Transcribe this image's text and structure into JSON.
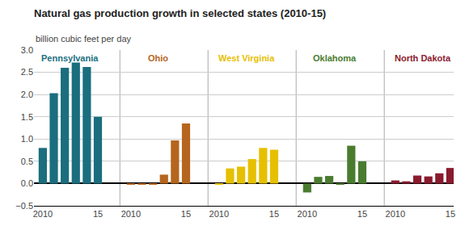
{
  "chart_data": {
    "type": "bar",
    "title": "Natural gas production growth in selected states (2010-15)",
    "subtitle": "billion cubic feet per day",
    "categories": [
      "2010",
      null,
      null,
      null,
      null,
      "15"
    ],
    "series": [
      {
        "name": "Pennsylvania",
        "color": "#1a6e7e",
        "values": [
          0.8,
          2.03,
          2.6,
          2.72,
          2.62,
          1.5
        ]
      },
      {
        "name": "Ohio",
        "color": "#b5651d",
        "values": [
          -0.02,
          -0.02,
          -0.02,
          0.2,
          0.97,
          1.35
        ]
      },
      {
        "name": "West Virginia",
        "color": "#e6c000",
        "values": [
          -0.03,
          0.34,
          0.38,
          0.55,
          0.8,
          0.76
        ]
      },
      {
        "name": "Oklahoma",
        "color": "#4a7c2f",
        "values": [
          -0.2,
          0.15,
          0.17,
          -0.03,
          0.85,
          0.5
        ]
      },
      {
        "name": "North Dakota",
        "color": "#8b1a2e",
        "values": [
          0.07,
          0.05,
          0.18,
          0.16,
          0.23,
          0.35
        ]
      }
    ],
    "ylim": [
      -0.5,
      3.0
    ],
    "yticks": [
      {
        "value": -0.5,
        "label": "−0.5"
      },
      {
        "value": 0.0,
        "label": "0.0"
      },
      0.5,
      {
        "value": 1.0,
        "label": "1.0"
      },
      1.5,
      {
        "value": 2.0,
        "label": "2.0"
      },
      2.5,
      {
        "value": 3.0,
        "label": "3.0"
      }
    ],
    "grid": true
  }
}
